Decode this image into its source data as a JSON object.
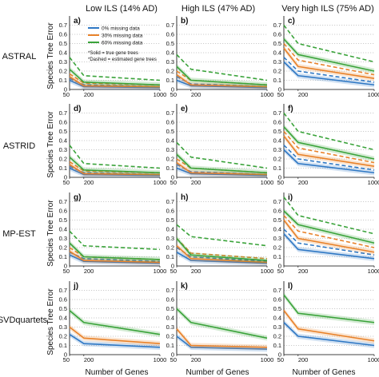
{
  "figure": {
    "column_titles": [
      "Low ILS (14% AD)",
      "High ILS (47% AD)",
      "Very high ILS (75% AD)"
    ],
    "row_labels": [
      "ASTRAL",
      "ASTRID",
      "MP-EST",
      "SVDquartets"
    ],
    "ylabel": "Species Tree Error",
    "xlabel": "Number of Genes",
    "legend": [
      "0% missing data",
      "30% missing data",
      "60% missing data"
    ],
    "legend_note": [
      "*Solid = true gene trees",
      "*Dashed = estimated gene trees"
    ],
    "colors": {
      "0%": "#2f78c4",
      "30%": "#e8822a",
      "60%": "#3aa33a"
    }
  },
  "chart_data": [
    {
      "panel": "a)",
      "type": "line",
      "x": [
        50,
        200,
        1000
      ],
      "xticks": [
        "50",
        "200",
        "1000"
      ],
      "ylim": [
        0,
        0.8
      ],
      "yticks": [
        "0",
        "0.1",
        "0.2",
        "0.3",
        "0.4",
        "0.5",
        "0.6",
        "0.7"
      ],
      "series": [
        {
          "name": "0% missing data",
          "style": "solid",
          "values": [
            0.1,
            0.03,
            0.02
          ]
        },
        {
          "name": "0% missing data",
          "style": "dashed",
          "values": [
            0.12,
            0.05,
            0.03
          ]
        },
        {
          "name": "30% missing data",
          "style": "solid",
          "values": [
            0.14,
            0.04,
            0.03
          ]
        },
        {
          "name": "30% missing data",
          "style": "dashed",
          "values": [
            0.17,
            0.07,
            0.05
          ]
        },
        {
          "name": "60% missing data",
          "style": "solid",
          "values": [
            0.22,
            0.08,
            0.05
          ]
        },
        {
          "name": "60% missing data",
          "style": "dashed",
          "values": [
            0.35,
            0.15,
            0.1
          ]
        }
      ]
    },
    {
      "panel": "b)",
      "type": "line",
      "x": [
        50,
        200,
        1000
      ],
      "xticks": [
        "50",
        "200",
        "1000"
      ],
      "ylim": [
        0,
        0.8
      ],
      "yticks": [
        "0",
        "0.1",
        "0.2",
        "0.3",
        "0.4",
        "0.5",
        "0.6",
        "0.7"
      ],
      "series": [
        {
          "name": "0% missing data",
          "style": "solid",
          "values": [
            0.1,
            0.04,
            0.02
          ]
        },
        {
          "name": "0% missing data",
          "style": "dashed",
          "values": [
            0.14,
            0.06,
            0.03
          ]
        },
        {
          "name": "30% missing data",
          "style": "solid",
          "values": [
            0.16,
            0.05,
            0.03
          ]
        },
        {
          "name": "30% missing data",
          "style": "dashed",
          "values": [
            0.2,
            0.1,
            0.05
          ]
        },
        {
          "name": "60% missing data",
          "style": "solid",
          "values": [
            0.25,
            0.1,
            0.05
          ]
        },
        {
          "name": "60% missing data",
          "style": "dashed",
          "values": [
            0.38,
            0.22,
            0.1
          ]
        }
      ]
    },
    {
      "panel": "c)",
      "type": "line",
      "x": [
        50,
        200,
        1000
      ],
      "xticks": [
        "50",
        "200",
        "1000"
      ],
      "ylim": [
        0,
        0.8
      ],
      "yticks": [
        "0",
        "0.1",
        "0.2",
        "0.3",
        "0.4",
        "0.5",
        "0.6",
        "0.7"
      ],
      "series": [
        {
          "name": "0% missing data",
          "style": "solid",
          "values": [
            0.3,
            0.15,
            0.05
          ]
        },
        {
          "name": "0% missing data",
          "style": "dashed",
          "values": [
            0.35,
            0.2,
            0.08
          ]
        },
        {
          "name": "30% missing data",
          "style": "solid",
          "values": [
            0.45,
            0.25,
            0.12
          ]
        },
        {
          "name": "30% missing data",
          "style": "dashed",
          "values": [
            0.5,
            0.32,
            0.16
          ]
        },
        {
          "name": "60% missing data",
          "style": "solid",
          "values": [
            0.55,
            0.38,
            0.2
          ]
        },
        {
          "name": "60% missing data",
          "style": "dashed",
          "values": [
            0.7,
            0.5,
            0.3
          ]
        }
      ]
    },
    {
      "panel": "d)",
      "type": "line",
      "x": [
        50,
        200,
        1000
      ],
      "xticks": [
        "50",
        "200",
        "1000"
      ],
      "ylim": [
        0,
        0.8
      ],
      "yticks": [
        "0",
        "0.1",
        "0.2",
        "0.3",
        "0.4",
        "0.5",
        "0.6",
        "0.7"
      ],
      "series": [
        {
          "name": "0% missing data",
          "style": "solid",
          "values": [
            0.1,
            0.03,
            0.02
          ]
        },
        {
          "name": "0% missing data",
          "style": "dashed",
          "values": [
            0.12,
            0.05,
            0.03
          ]
        },
        {
          "name": "30% missing data",
          "style": "solid",
          "values": [
            0.14,
            0.04,
            0.03
          ]
        },
        {
          "name": "30% missing data",
          "style": "dashed",
          "values": [
            0.17,
            0.07,
            0.05
          ]
        },
        {
          "name": "60% missing data",
          "style": "solid",
          "values": [
            0.22,
            0.08,
            0.05
          ]
        },
        {
          "name": "60% missing data",
          "style": "dashed",
          "values": [
            0.35,
            0.15,
            0.1
          ]
        }
      ]
    },
    {
      "panel": "e)",
      "type": "line",
      "x": [
        50,
        200,
        1000
      ],
      "xticks": [
        "50",
        "200",
        "1000"
      ],
      "ylim": [
        0,
        0.8
      ],
      "yticks": [
        "0",
        "0.1",
        "0.2",
        "0.3",
        "0.4",
        "0.5",
        "0.6",
        "0.7"
      ],
      "series": [
        {
          "name": "0% missing data",
          "style": "solid",
          "values": [
            0.1,
            0.04,
            0.02
          ]
        },
        {
          "name": "0% missing data",
          "style": "dashed",
          "values": [
            0.14,
            0.06,
            0.03
          ]
        },
        {
          "name": "30% missing data",
          "style": "solid",
          "values": [
            0.16,
            0.05,
            0.03
          ]
        },
        {
          "name": "30% missing data",
          "style": "dashed",
          "values": [
            0.2,
            0.1,
            0.05
          ]
        },
        {
          "name": "60% missing data",
          "style": "solid",
          "values": [
            0.25,
            0.1,
            0.05
          ]
        },
        {
          "name": "60% missing data",
          "style": "dashed",
          "values": [
            0.38,
            0.22,
            0.1
          ]
        }
      ]
    },
    {
      "panel": "f)",
      "type": "line",
      "x": [
        50,
        200,
        1000
      ],
      "xticks": [
        "50",
        "200",
        "1000"
      ],
      "ylim": [
        0,
        0.8
      ],
      "yticks": [
        "0",
        "0.1",
        "0.2",
        "0.3",
        "0.4",
        "0.5",
        "0.6",
        "0.7"
      ],
      "series": [
        {
          "name": "0% missing data",
          "style": "solid",
          "values": [
            0.3,
            0.15,
            0.05
          ]
        },
        {
          "name": "0% missing data",
          "style": "dashed",
          "values": [
            0.35,
            0.2,
            0.08
          ]
        },
        {
          "name": "30% missing data",
          "style": "solid",
          "values": [
            0.45,
            0.25,
            0.12
          ]
        },
        {
          "name": "30% missing data",
          "style": "dashed",
          "values": [
            0.5,
            0.32,
            0.16
          ]
        },
        {
          "name": "60% missing data",
          "style": "solid",
          "values": [
            0.55,
            0.38,
            0.2
          ]
        },
        {
          "name": "60% missing data",
          "style": "dashed",
          "values": [
            0.7,
            0.5,
            0.3
          ]
        }
      ]
    },
    {
      "panel": "g)",
      "type": "line",
      "x": [
        50,
        200,
        1000
      ],
      "xticks": [
        "50",
        "200",
        "1000"
      ],
      "ylim": [
        0,
        0.8
      ],
      "yticks": [
        "0",
        "0.1",
        "0.2",
        "0.3",
        "0.4",
        "0.5",
        "0.6",
        "0.7"
      ],
      "series": [
        {
          "name": "0% missing data",
          "style": "solid",
          "values": [
            0.12,
            0.05,
            0.03
          ]
        },
        {
          "name": "0% missing data",
          "style": "dashed",
          "values": [
            0.15,
            0.08,
            0.05
          ]
        },
        {
          "name": "30% missing data",
          "style": "solid",
          "values": [
            0.16,
            0.06,
            0.04
          ]
        },
        {
          "name": "30% missing data",
          "style": "dashed",
          "values": [
            0.2,
            0.1,
            0.07
          ]
        },
        {
          "name": "60% missing data",
          "style": "solid",
          "values": [
            0.25,
            0.1,
            0.07
          ]
        },
        {
          "name": "60% missing data",
          "style": "dashed",
          "values": [
            0.38,
            0.22,
            0.18
          ]
        }
      ]
    },
    {
      "panel": "h)",
      "type": "line",
      "x": [
        50,
        200,
        1000
      ],
      "xticks": [
        "50",
        "200",
        "1000"
      ],
      "ylim": [
        0,
        0.8
      ],
      "yticks": [
        "0",
        "0.1",
        "0.2",
        "0.3",
        "0.4",
        "0.5",
        "0.6",
        "0.7"
      ],
      "series": [
        {
          "name": "0% missing data",
          "style": "solid",
          "values": [
            0.15,
            0.06,
            0.03
          ]
        },
        {
          "name": "0% missing data",
          "style": "dashed",
          "values": [
            0.2,
            0.1,
            0.05
          ]
        },
        {
          "name": "30% missing data",
          "style": "solid",
          "values": [
            0.22,
            0.08,
            0.04
          ]
        },
        {
          "name": "30% missing data",
          "style": "dashed",
          "values": [
            0.3,
            0.14,
            0.08
          ]
        },
        {
          "name": "60% missing data",
          "style": "solid",
          "values": [
            0.3,
            0.12,
            0.06
          ]
        },
        {
          "name": "60% missing data",
          "style": "dashed",
          "values": [
            0.45,
            0.32,
            0.22
          ]
        }
      ]
    },
    {
      "panel": "i)",
      "type": "line",
      "x": [
        50,
        200,
        1000
      ],
      "xticks": [
        "50",
        "200",
        "1000"
      ],
      "ylim": [
        0,
        0.8
      ],
      "yticks": [
        "0",
        "0.1",
        "0.2",
        "0.3",
        "0.4",
        "0.5",
        "0.6",
        "0.7"
      ],
      "series": [
        {
          "name": "0% missing data",
          "style": "solid",
          "values": [
            0.35,
            0.18,
            0.08
          ]
        },
        {
          "name": "0% missing data",
          "style": "dashed",
          "values": [
            0.4,
            0.25,
            0.12
          ]
        },
        {
          "name": "30% missing data",
          "style": "solid",
          "values": [
            0.5,
            0.3,
            0.15
          ]
        },
        {
          "name": "30% missing data",
          "style": "dashed",
          "values": [
            0.55,
            0.38,
            0.2
          ]
        },
        {
          "name": "60% missing data",
          "style": "solid",
          "values": [
            0.6,
            0.45,
            0.25
          ]
        },
        {
          "name": "60% missing data",
          "style": "dashed",
          "values": [
            0.75,
            0.55,
            0.35
          ]
        }
      ]
    },
    {
      "panel": "j)",
      "type": "line",
      "x": [
        50,
        200,
        1000
      ],
      "xticks": [
        "50",
        "200",
        "1000"
      ],
      "ylim": [
        0,
        0.8
      ],
      "yticks": [
        "0",
        "0.1",
        "0.2",
        "0.3",
        "0.4",
        "0.5",
        "0.6",
        "0.7"
      ],
      "series": [
        {
          "name": "0% missing data",
          "style": "solid",
          "values": [
            0.22,
            0.12,
            0.08
          ]
        },
        {
          "name": "30% missing data",
          "style": "solid",
          "values": [
            0.3,
            0.18,
            0.12
          ]
        },
        {
          "name": "60% missing data",
          "style": "solid",
          "values": [
            0.48,
            0.35,
            0.22
          ]
        }
      ]
    },
    {
      "panel": "k)",
      "type": "line",
      "x": [
        50,
        200,
        1000
      ],
      "xticks": [
        "50",
        "200",
        "1000"
      ],
      "ylim": [
        0,
        0.8
      ],
      "yticks": [
        "0",
        "0.1",
        "0.2",
        "0.3",
        "0.4",
        "0.5",
        "0.6",
        "0.7"
      ],
      "series": [
        {
          "name": "0% missing data",
          "style": "solid",
          "values": [
            0.2,
            0.08,
            0.06
          ]
        },
        {
          "name": "30% missing data",
          "style": "solid",
          "values": [
            0.28,
            0.1,
            0.08
          ]
        },
        {
          "name": "60% missing data",
          "style": "solid",
          "values": [
            0.5,
            0.35,
            0.18
          ]
        }
      ]
    },
    {
      "panel": "l)",
      "type": "line",
      "x": [
        50,
        200,
        1000
      ],
      "xticks": [
        "50",
        "200",
        "1000"
      ],
      "ylim": [
        0,
        0.8
      ],
      "yticks": [
        "0",
        "0.1",
        "0.2",
        "0.3",
        "0.4",
        "0.5",
        "0.6",
        "0.7"
      ],
      "series": [
        {
          "name": "0% missing data",
          "style": "solid",
          "values": [
            0.35,
            0.2,
            0.1
          ]
        },
        {
          "name": "30% missing data",
          "style": "solid",
          "values": [
            0.48,
            0.28,
            0.15
          ]
        },
        {
          "name": "60% missing data",
          "style": "solid",
          "values": [
            0.65,
            0.45,
            0.35
          ]
        }
      ]
    }
  ]
}
